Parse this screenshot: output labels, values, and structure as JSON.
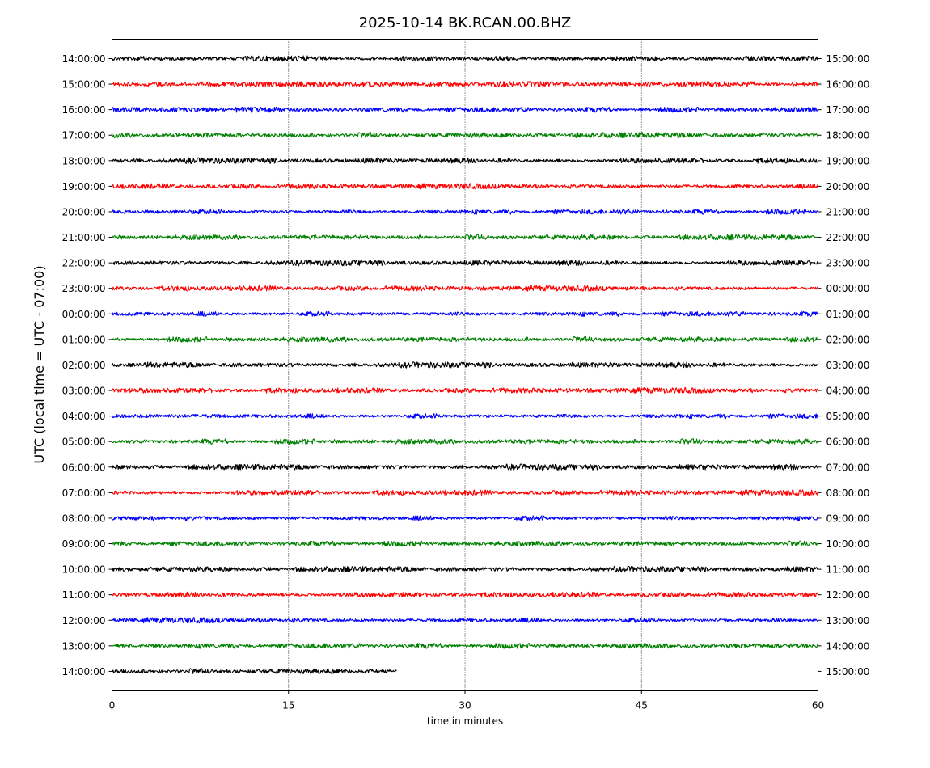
{
  "chart_data": {
    "type": "line",
    "title": "2025-10-14 BK.RCAN.00.BHZ",
    "xlabel": "time in minutes",
    "ylabel": "UTC (local time = UTC - 07:00)",
    "xlim": [
      0,
      60
    ],
    "x_ticks": [
      0,
      15,
      30,
      45,
      60
    ],
    "x_tick_labels": [
      "0",
      "15",
      "30",
      "45",
      "60"
    ],
    "vertical_gridlines_at": [
      15,
      30,
      45
    ],
    "grid_style": "dotted",
    "left_tick_labels": [
      "14:00:00",
      "15:00:00",
      "16:00:00",
      "17:00:00",
      "18:00:00",
      "19:00:00",
      "20:00:00",
      "21:00:00",
      "22:00:00",
      "23:00:00",
      "00:00:00",
      "01:00:00",
      "02:00:00",
      "03:00:00",
      "04:00:00",
      "05:00:00",
      "06:00:00",
      "07:00:00",
      "08:00:00",
      "09:00:00",
      "10:00:00",
      "11:00:00",
      "12:00:00",
      "13:00:00",
      "14:00:00"
    ],
    "right_tick_labels": [
      "15:00:00",
      "16:00:00",
      "17:00:00",
      "18:00:00",
      "19:00:00",
      "20:00:00",
      "21:00:00",
      "22:00:00",
      "23:00:00",
      "00:00:00",
      "01:00:00",
      "02:00:00",
      "03:00:00",
      "04:00:00",
      "05:00:00",
      "06:00:00",
      "07:00:00",
      "08:00:00",
      "09:00:00",
      "10:00:00",
      "11:00:00",
      "12:00:00",
      "13:00:00",
      "14:00:00",
      "15:00:00"
    ],
    "color_cycle": [
      "#000000",
      "#ff0000",
      "#0000ff",
      "#008000"
    ],
    "trace_end_minutes": [
      60,
      60,
      60,
      60,
      60,
      60,
      60,
      60,
      60,
      60,
      60,
      60,
      60,
      60,
      60,
      60,
      60,
      60,
      60,
      60,
      60,
      60,
      60,
      60,
      24.2
    ]
  }
}
